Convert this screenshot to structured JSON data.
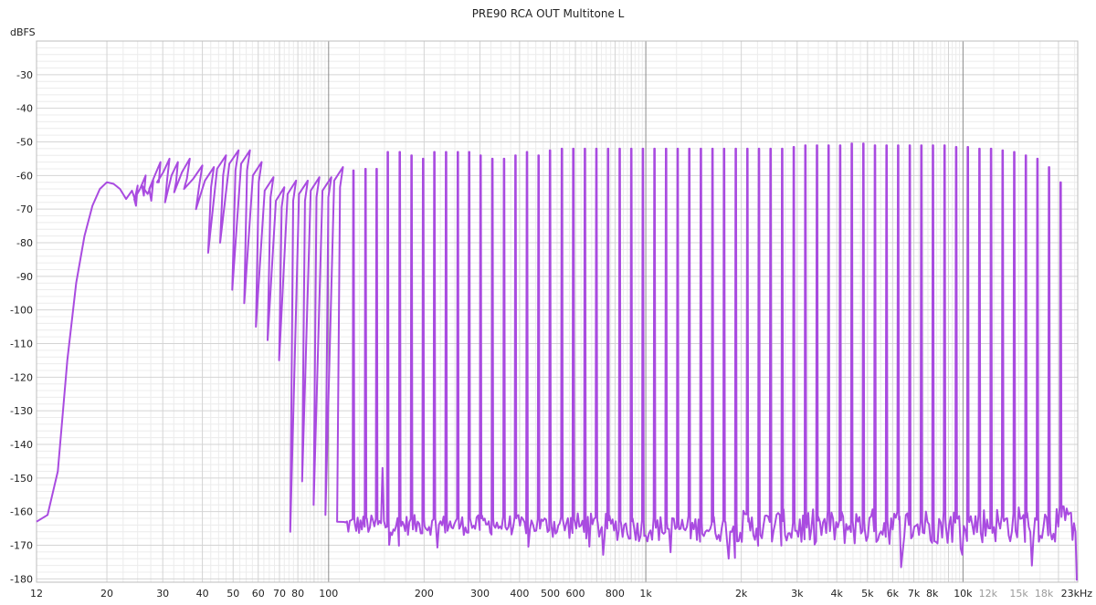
{
  "chart_data": {
    "type": "line",
    "title": "PRE90 RCA OUT Multitone L",
    "ylabel": "dBFS",
    "xlabel": "",
    "x_scale": "log",
    "xlim": [
      12,
      23000
    ],
    "ylim": [
      -181,
      -20
    ],
    "grid": true,
    "legend": "none",
    "line_color": "#a94be0",
    "grid_colors": {
      "major": "#8c8c8c",
      "minor": "#d4d4d4",
      "fine": "#ececec"
    },
    "y_ticks": [
      -30,
      -40,
      -50,
      -60,
      -70,
      -80,
      -90,
      -100,
      -110,
      -120,
      -130,
      -140,
      -150,
      -160,
      -170,
      -180
    ],
    "y_tick_labels": [
      "-30",
      "-40",
      "-50",
      "-60",
      "-70",
      "-80",
      "-90",
      "-100",
      "-110",
      "-120",
      "-130",
      "-140",
      "-150",
      "-160",
      "-170",
      "-180"
    ],
    "x_ticks": [
      12,
      20,
      30,
      40,
      50,
      60,
      70,
      80,
      100,
      200,
      300,
      400,
      500,
      600,
      800,
      1000,
      2000,
      3000,
      4000,
      5000,
      6000,
      7000,
      8000,
      10000,
      12000,
      15000,
      18000,
      23000
    ],
    "x_tick_labels": [
      "12",
      "20",
      "30",
      "40",
      "50",
      "60",
      "70",
      "80",
      "100",
      "200",
      "300",
      "400",
      "500",
      "600",
      "800",
      "1k",
      "2k",
      "3k",
      "4k",
      "5k",
      "6k",
      "7k",
      "8k",
      "10k",
      "12k",
      "15k",
      "18k",
      "23kHz"
    ],
    "x_tick_dim": [
      12000,
      15000,
      18000
    ],
    "low_freq_envelope": [
      [
        12,
        -163
      ],
      [
        13,
        -161
      ],
      [
        14,
        -148
      ],
      [
        15,
        -115
      ],
      [
        16,
        -92
      ],
      [
        17,
        -78
      ],
      [
        18,
        -69
      ],
      [
        19,
        -64
      ],
      [
        20,
        -62
      ],
      [
        21,
        -62.5
      ],
      [
        22,
        -64
      ],
      [
        23,
        -67
      ],
      [
        24,
        -64.5
      ]
    ],
    "tone_peaks": [
      [
        25,
        -63
      ],
      [
        26.5,
        -60
      ],
      [
        28,
        -61.5
      ],
      [
        29.5,
        -56
      ],
      [
        31.5,
        -55
      ],
      [
        33.5,
        -56
      ],
      [
        36.5,
        -55
      ],
      [
        40,
        -57
      ],
      [
        43.5,
        -57.5
      ],
      [
        47.5,
        -54
      ],
      [
        52,
        -52.5
      ],
      [
        56.5,
        -52.5
      ],
      [
        61.5,
        -56
      ],
      [
        67,
        -60.5
      ],
      [
        72.5,
        -63.5
      ],
      [
        79,
        -61.5
      ],
      [
        86,
        -61.5
      ],
      [
        93.5,
        -60.5
      ],
      [
        102,
        -60.5
      ],
      [
        111,
        -57.5
      ],
      [
        120,
        -58.5
      ],
      [
        131,
        -58
      ],
      [
        142,
        -58
      ],
      [
        154,
        -53
      ],
      [
        168,
        -53
      ],
      [
        183,
        -54
      ],
      [
        199,
        -55
      ],
      [
        216,
        -53
      ],
      [
        235,
        -53
      ],
      [
        256,
        -53
      ],
      [
        278,
        -53
      ],
      [
        302,
        -54
      ],
      [
        329,
        -55
      ],
      [
        358,
        -55
      ],
      [
        389,
        -54
      ],
      [
        423,
        -53
      ],
      [
        460,
        -54
      ],
      [
        500,
        -52.5
      ],
      [
        545,
        -52
      ],
      [
        592,
        -52
      ],
      [
        644,
        -52
      ],
      [
        700,
        -52
      ],
      [
        762,
        -52
      ],
      [
        829,
        -52
      ],
      [
        902,
        -52
      ],
      [
        981,
        -52
      ],
      [
        1067,
        -52
      ],
      [
        1161,
        -52
      ],
      [
        1263,
        -52
      ],
      [
        1374,
        -52
      ],
      [
        1495,
        -52
      ],
      [
        1626,
        -52
      ],
      [
        1769,
        -52
      ],
      [
        1925,
        -52
      ],
      [
        2094,
        -52
      ],
      [
        2278,
        -52
      ],
      [
        2478,
        -52
      ],
      [
        2696,
        -52
      ],
      [
        2933,
        -51.5
      ],
      [
        3191,
        -51
      ],
      [
        3471,
        -51
      ],
      [
        3776,
        -51
      ],
      [
        4108,
        -51
      ],
      [
        4469,
        -50.5
      ],
      [
        4862,
        -50.5
      ],
      [
        5289,
        -51
      ],
      [
        5754,
        -51
      ],
      [
        6260,
        -51
      ],
      [
        6810,
        -51
      ],
      [
        7408,
        -51
      ],
      [
        8059,
        -51
      ],
      [
        8768,
        -51
      ],
      [
        9538,
        -51.5
      ],
      [
        10377,
        -51.5
      ],
      [
        11289,
        -52
      ],
      [
        12281,
        -52
      ],
      [
        13360,
        -52.5
      ],
      [
        14534,
        -53
      ],
      [
        15811,
        -54
      ],
      [
        17201,
        -55
      ],
      [
        18712,
        -57.5
      ],
      [
        20356,
        -62
      ]
    ],
    "valley_depths": [
      [
        24.4,
        -67
      ],
      [
        25.8,
        -63
      ],
      [
        27.2,
        -64
      ],
      [
        28.8,
        -62
      ],
      [
        30.5,
        -68
      ],
      [
        32.6,
        -65
      ],
      [
        35,
        -64
      ],
      [
        38.2,
        -70
      ],
      [
        41.7,
        -83
      ],
      [
        45.5,
        -80
      ],
      [
        49.7,
        -94
      ],
      [
        54.2,
        -98
      ],
      [
        59,
        -105
      ],
      [
        64.2,
        -109
      ],
      [
        69.8,
        -115
      ],
      [
        75.7,
        -166
      ],
      [
        82.5,
        -151
      ],
      [
        89.7,
        -158
      ],
      [
        97.7,
        -161
      ],
      [
        106.4,
        -163
      ]
    ],
    "noise_floor": [
      [
        110,
        -164
      ],
      [
        200,
        -164
      ],
      [
        300,
        -164
      ],
      [
        500,
        -164
      ],
      [
        1000,
        -165
      ],
      [
        2000,
        -165
      ],
      [
        5000,
        -164.5
      ],
      [
        10000,
        -164
      ],
      [
        23000,
        -163.5
      ]
    ]
  }
}
